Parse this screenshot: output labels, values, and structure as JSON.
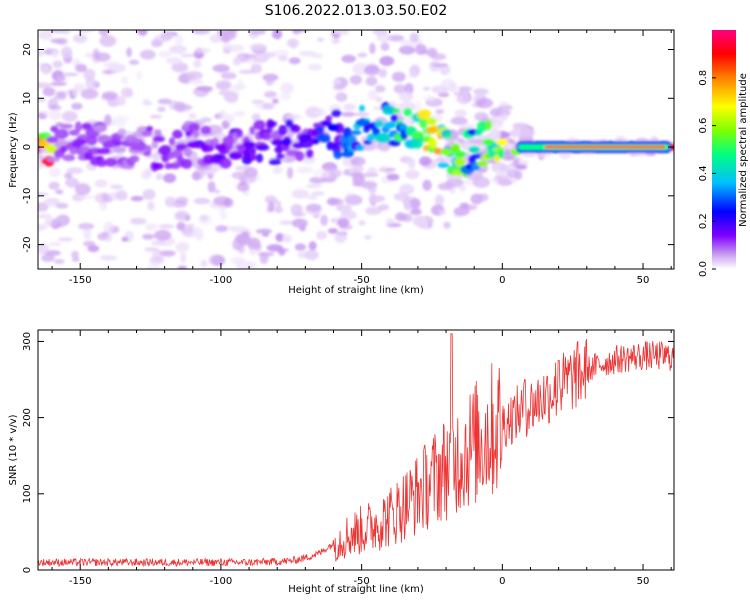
{
  "figure_title": "S106.2022.013.03.50.E02",
  "chart_data": [
    {
      "type": "heatmap",
      "title": "S106.2022.013.03.50.E02",
      "xlabel": "Height of straight line (km)",
      "ylabel": "Frequency (Hz)",
      "xlim": [
        -165,
        61
      ],
      "ylim": [
        -25,
        24
      ],
      "x_ticks": [
        -150,
        -100,
        -50,
        0,
        50
      ],
      "y_ticks": [
        -20,
        -10,
        0,
        10,
        20
      ],
      "colorbar": {
        "label": "Normalized spectral amplitude",
        "range": [
          0,
          1
        ],
        "ticks": [
          "0.0",
          "0.2",
          "0.4",
          "0.6",
          "0.8"
        ],
        "colormap": [
          "#ffffff",
          "#c99ff0",
          "#7f00ff",
          "#0000ff",
          "#00bfff",
          "#00ff80",
          "#7fff00",
          "#ffff00",
          "#ff7f00",
          "#ff0000",
          "#ff0080"
        ]
      },
      "ridge": [
        {
          "x": -160,
          "f": 1.5,
          "amp": 0.15
        },
        {
          "x": -150,
          "f": 1.0,
          "amp": 0.18
        },
        {
          "x": -140,
          "f": 0.5,
          "amp": 0.16
        },
        {
          "x": -130,
          "f": 0.0,
          "amp": 0.15
        },
        {
          "x": -120,
          "f": -0.5,
          "amp": 0.18
        },
        {
          "x": -110,
          "f": 0.5,
          "amp": 0.2
        },
        {
          "x": -100,
          "f": 0.0,
          "amp": 0.2
        },
        {
          "x": -90,
          "f": 0.5,
          "amp": 0.22
        },
        {
          "x": -80,
          "f": 1.0,
          "amp": 0.22
        },
        {
          "x": -70,
          "f": 2.0,
          "amp": 0.25
        },
        {
          "x": -60,
          "f": 4.0,
          "amp": 0.3
        },
        {
          "x": -55,
          "f": -1.5,
          "amp": 0.35
        },
        {
          "x": -50,
          "f": 5.0,
          "amp": 0.35
        },
        {
          "x": -40,
          "f": 4.5,
          "amp": 0.4
        },
        {
          "x": -30,
          "f": 2.5,
          "amp": 0.55
        },
        {
          "x": -25,
          "f": 3.5,
          "amp": 0.75
        },
        {
          "x": -20,
          "f": -1.0,
          "amp": 0.6
        },
        {
          "x": -15,
          "f": -1.5,
          "amp": 0.55
        },
        {
          "x": -10,
          "f": -0.5,
          "amp": 0.45
        },
        {
          "x": -5,
          "f": 1.0,
          "amp": 0.55
        },
        {
          "x": 0,
          "f": 1.0,
          "amp": 0.7
        },
        {
          "x": 5,
          "f": -1.0,
          "amp": 0.6
        },
        {
          "x": 10,
          "f": 0.0,
          "amp": 0.55
        },
        {
          "x": 20,
          "f": 0.0,
          "amp": 0.75
        },
        {
          "x": 30,
          "f": 0.0,
          "amp": 0.85
        },
        {
          "x": 40,
          "f": 0.0,
          "amp": 0.9
        },
        {
          "x": 50,
          "f": 0.0,
          "amp": 0.9
        },
        {
          "x": 60,
          "f": 0.0,
          "amp": 0.9
        }
      ]
    },
    {
      "type": "line",
      "xlabel": "Height of straight line (km)",
      "ylabel": "SNR (10 * v/v)",
      "xlim": [
        -165,
        61
      ],
      "ylim": [
        0,
        315
      ],
      "x_ticks": [
        -150,
        -100,
        -50,
        0,
        50
      ],
      "y_ticks": [
        0,
        100,
        200,
        300
      ],
      "color": "#ee3333",
      "x": [
        -165,
        -150,
        -125,
        -100,
        -90,
        -80,
        -75,
        -70,
        -65,
        -60,
        -55,
        -50,
        -45,
        -40,
        -35,
        -30,
        -25,
        -20,
        -15,
        -10,
        -5,
        0,
        5,
        10,
        15,
        20,
        25,
        30,
        35,
        40,
        45,
        50,
        55,
        60
      ],
      "values": [
        10,
        10,
        10,
        10,
        10,
        11,
        12,
        16,
        22,
        35,
        45,
        52,
        60,
        70,
        85,
        100,
        118,
        135,
        150,
        165,
        180,
        192,
        205,
        215,
        228,
        240,
        252,
        262,
        270,
        276,
        279,
        281,
        281,
        280
      ],
      "peaks": [
        {
          "x": -18,
          "y": 310
        },
        {
          "x": 8,
          "y": 250
        },
        {
          "x": 20,
          "y": 275
        }
      ]
    }
  ]
}
